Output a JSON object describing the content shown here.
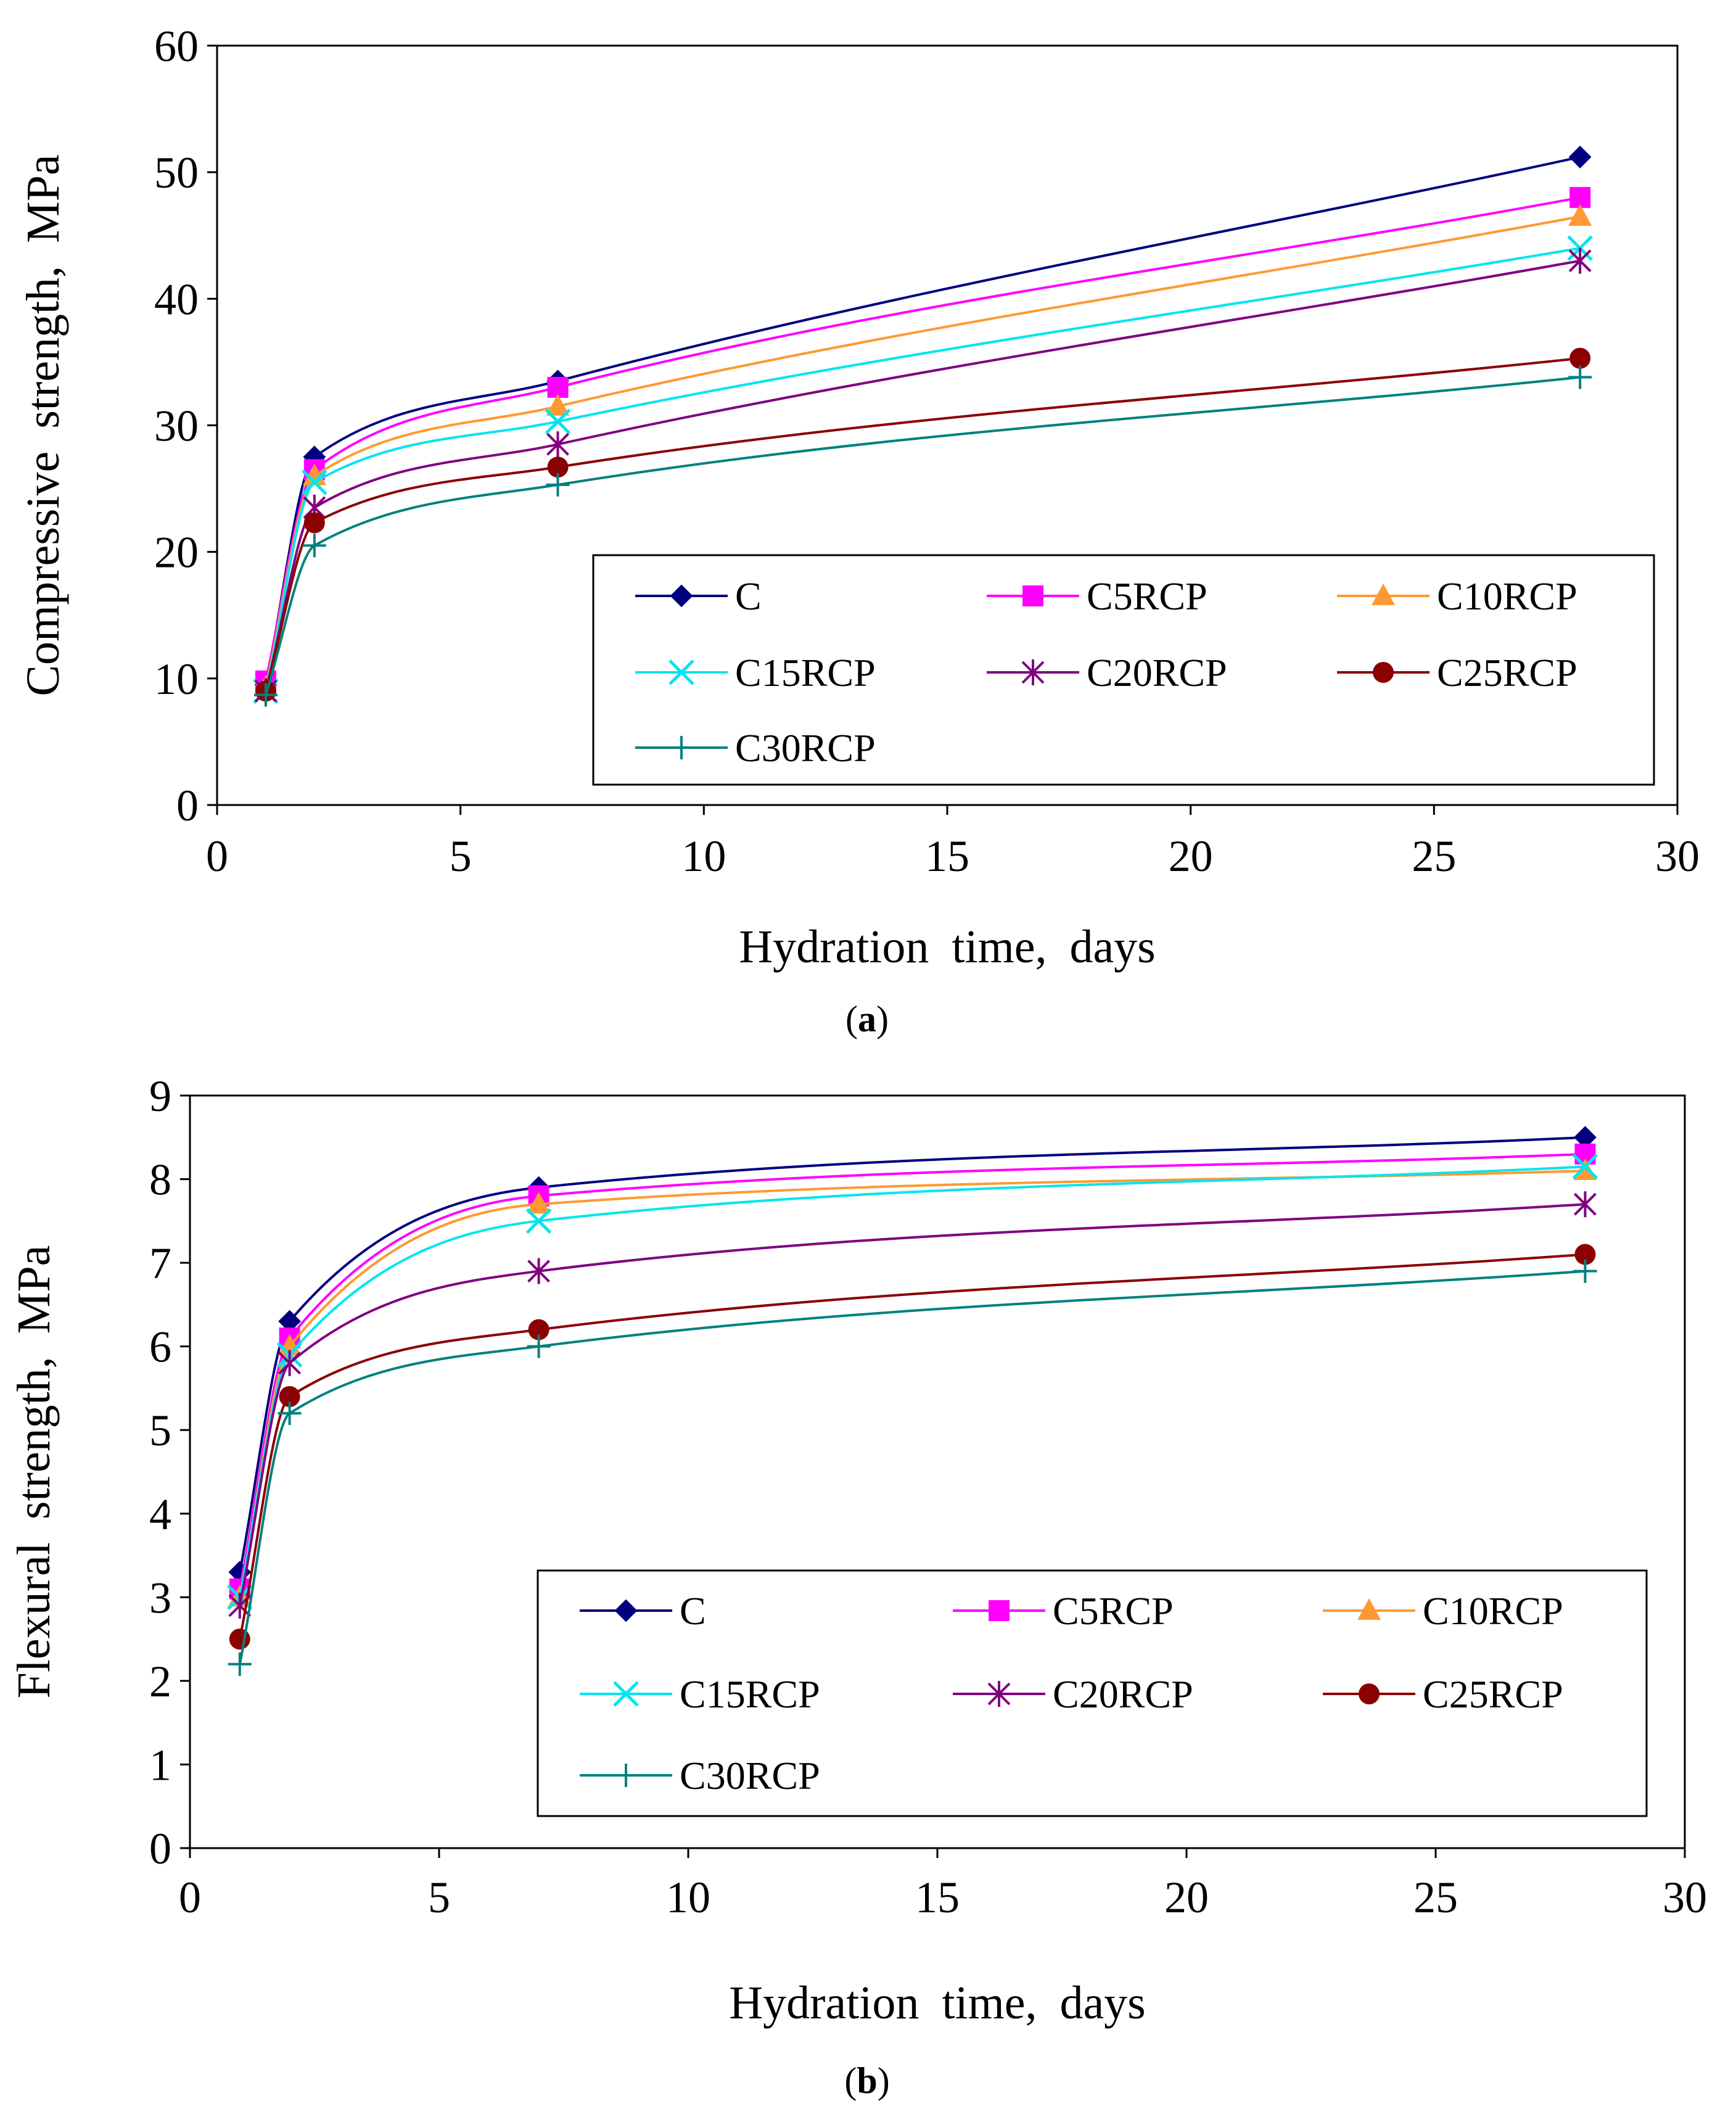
{
  "chart_data": [
    {
      "type": "line",
      "panel_label": "a",
      "xlabel": "Hydration time, days",
      "ylabel": "Compressive strength, MPa",
      "xlim": [
        0,
        30
      ],
      "ylim": [
        0,
        60
      ],
      "xticks": [
        0,
        5,
        10,
        15,
        20,
        25,
        30
      ],
      "yticks": [
        0,
        10,
        20,
        30,
        40,
        50,
        60
      ],
      "grid": false,
      "legend_position": "bottom-right",
      "x": [
        1,
        2,
        7,
        28
      ],
      "series": [
        {
          "name": "C",
          "marker": "diamond",
          "color": "#00007f",
          "values": [
            9.5,
            27.5,
            33.5,
            51.2
          ]
        },
        {
          "name": "C5RCP",
          "marker": "square",
          "color": "#ff00ff",
          "values": [
            9.8,
            26.5,
            33.0,
            48.0
          ]
        },
        {
          "name": "C10RCP",
          "marker": "triangle",
          "color": "#ff9933",
          "values": [
            9.3,
            26.0,
            31.5,
            46.5
          ]
        },
        {
          "name": "C15RCP",
          "marker": "x",
          "color": "#00e5ee",
          "values": [
            9.0,
            25.5,
            30.3,
            44.0
          ]
        },
        {
          "name": "C20RCP",
          "marker": "star",
          "color": "#800080",
          "values": [
            9.0,
            23.5,
            28.5,
            43.0
          ]
        },
        {
          "name": "C25RCP",
          "marker": "circle",
          "color": "#8b0000",
          "values": [
            9.0,
            22.3,
            26.7,
            35.3
          ]
        },
        {
          "name": "C30RCP",
          "marker": "plus",
          "color": "#008080",
          "values": [
            8.7,
            20.5,
            25.3,
            33.8
          ]
        }
      ]
    },
    {
      "type": "line",
      "panel_label": "b",
      "xlabel": "Hydration time, days",
      "ylabel": "Flexural strength, MPa",
      "xlim": [
        0,
        30
      ],
      "ylim": [
        0,
        9
      ],
      "xticks": [
        0,
        5,
        10,
        15,
        20,
        25,
        30
      ],
      "yticks": [
        0,
        1,
        2,
        3,
        4,
        5,
        6,
        7,
        8,
        9
      ],
      "grid": false,
      "legend_position": "bottom-right",
      "x": [
        1,
        2,
        7,
        28
      ],
      "series": [
        {
          "name": "C",
          "marker": "diamond",
          "color": "#00007f",
          "values": [
            3.3,
            6.3,
            7.9,
            8.5
          ]
        },
        {
          "name": "C5RCP",
          "marker": "square",
          "color": "#ff00ff",
          "values": [
            3.1,
            6.1,
            7.8,
            8.3
          ]
        },
        {
          "name": "C10RCP",
          "marker": "triangle",
          "color": "#ff9933",
          "values": [
            3.0,
            6.0,
            7.7,
            8.1
          ]
        },
        {
          "name": "C15RCP",
          "marker": "x",
          "color": "#00e5ee",
          "values": [
            3.0,
            5.9,
            7.5,
            8.15
          ]
        },
        {
          "name": "C20RCP",
          "marker": "star",
          "color": "#800080",
          "values": [
            2.9,
            5.8,
            6.9,
            7.7
          ]
        },
        {
          "name": "C25RCP",
          "marker": "circle",
          "color": "#8b0000",
          "values": [
            2.5,
            5.4,
            6.2,
            7.1
          ]
        },
        {
          "name": "C30RCP",
          "marker": "plus",
          "color": "#008080",
          "values": [
            2.2,
            5.2,
            6.0,
            6.9
          ]
        }
      ]
    }
  ]
}
